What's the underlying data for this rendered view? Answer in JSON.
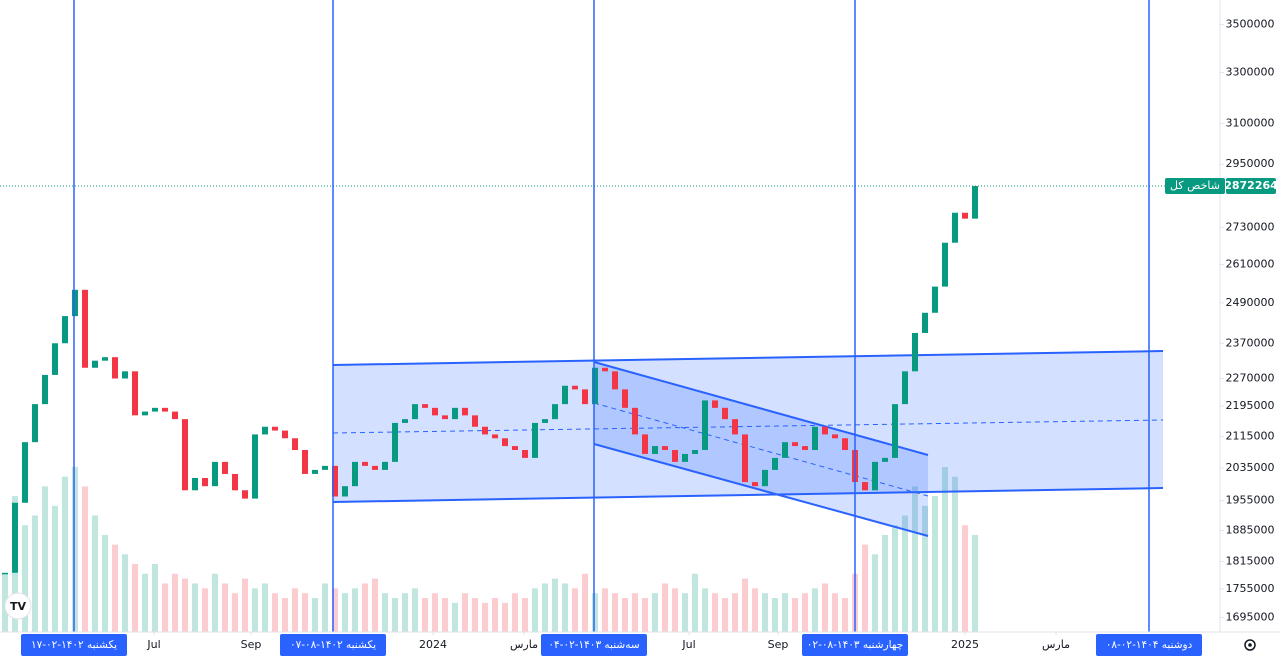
{
  "chart_data": {
    "type": "candlestick",
    "series_name": "شاخص کل",
    "up_color": "#089981",
    "down_color": "#f23645",
    "line_color": "#2962ff",
    "log_scale": true,
    "values": [
      1790000,
      1950000,
      2100000,
      2200000,
      2280000,
      2370000,
      2450000,
      2530000,
      2300000,
      2320000,
      2330000,
      2270000,
      2290000,
      2170000,
      2180000,
      2190000,
      2180000,
      2160000,
      1980000,
      2010000,
      1990000,
      2050000,
      2020000,
      1980000,
      1960000,
      2120000,
      2140000,
      2130000,
      2110000,
      2080000,
      2020000,
      2030000,
      2040000,
      1965000,
      1990000,
      2050000,
      2040000,
      2030000,
      2050000,
      2150000,
      2160000,
      2200000,
      2190000,
      2170000,
      2160000,
      2190000,
      2170000,
      2140000,
      2120000,
      2110000,
      2090000,
      2080000,
      2060000,
      2150000,
      2160000,
      2200000,
      2250000,
      2240000,
      2200000,
      2300000,
      2290000,
      2240000,
      2190000,
      2120000,
      2070000,
      2090000,
      2080000,
      2050000,
      2070000,
      2080000,
      2210000,
      2190000,
      2160000,
      2120000,
      2000000,
      1990000,
      2030000,
      2060000,
      2100000,
      2090000,
      2080000,
      2140000,
      2120000,
      2110000,
      2080000,
      2000000,
      1980000,
      2050000,
      2060000,
      2200000,
      2290000,
      2400000,
      2460000,
      2540000,
      2680000,
      2780000,
      2760000,
      2872264
    ],
    "volume": [
      60,
      140,
      110,
      120,
      150,
      130,
      160,
      170,
      150,
      120,
      100,
      90,
      80,
      70,
      60,
      70,
      50,
      60,
      55,
      50,
      45,
      60,
      50,
      40,
      55,
      45,
      50,
      40,
      35,
      45,
      40,
      35,
      50,
      45,
      40,
      45,
      50,
      55,
      40,
      35,
      40,
      45,
      35,
      40,
      35,
      30,
      40,
      35,
      30,
      35,
      30,
      40,
      35,
      45,
      50,
      55,
      50,
      45,
      60,
      40,
      45,
      40,
      35,
      40,
      35,
      40,
      50,
      45,
      40,
      60,
      45,
      40,
      35,
      40,
      55,
      45,
      40,
      35,
      40,
      35,
      40,
      45,
      50,
      40,
      35,
      60,
      90,
      80,
      100,
      110,
      120,
      150,
      130,
      140,
      170,
      160,
      110,
      100
    ],
    "ylim": [
      1665000,
      3606000
    ],
    "yticks": [
      1695000,
      1755000,
      1815000,
      1885000,
      1955000,
      2035000,
      2115000,
      2195000,
      2270000,
      2370000,
      2490000,
      2610000,
      2730000,
      2950000,
      3100000,
      3300000,
      3500000
    ],
    "xlim": [
      -0.5,
      121.5
    ],
    "xticks": [
      {
        "value": 14.9,
        "label": "Jul"
      },
      {
        "value": 24.6,
        "label": "Sep"
      },
      {
        "value": 42.8,
        "label": "2024"
      },
      {
        "value": 51.9,
        "label": "مارس"
      },
      {
        "value": 68.4,
        "label": "Jul"
      },
      {
        "value": 77.3,
        "label": "Sep"
      },
      {
        "value": 96,
        "label": "2025"
      },
      {
        "value": 105.1,
        "label": "مارس"
      }
    ],
    "date_markers": [
      {
        "value": 6.9,
        "label": "یکشنبه ۱۴۰۲-۰۲-۱۷"
      },
      {
        "value": 32.8,
        "label": "یکشنبه ۱۴۰۲-۰۸-۰۷"
      },
      {
        "value": 58.9,
        "label": "سه‌شنبه ۱۴۰۳-۰۲-۰۴"
      },
      {
        "value": 85,
        "label": "چهارشنبه ۱۴۰۳-۰۸-۰۲"
      },
      {
        "value": 114.4,
        "label": "دوشنبه ۱۴۰۴-۰۲-۰۸"
      }
    ]
  }
}
